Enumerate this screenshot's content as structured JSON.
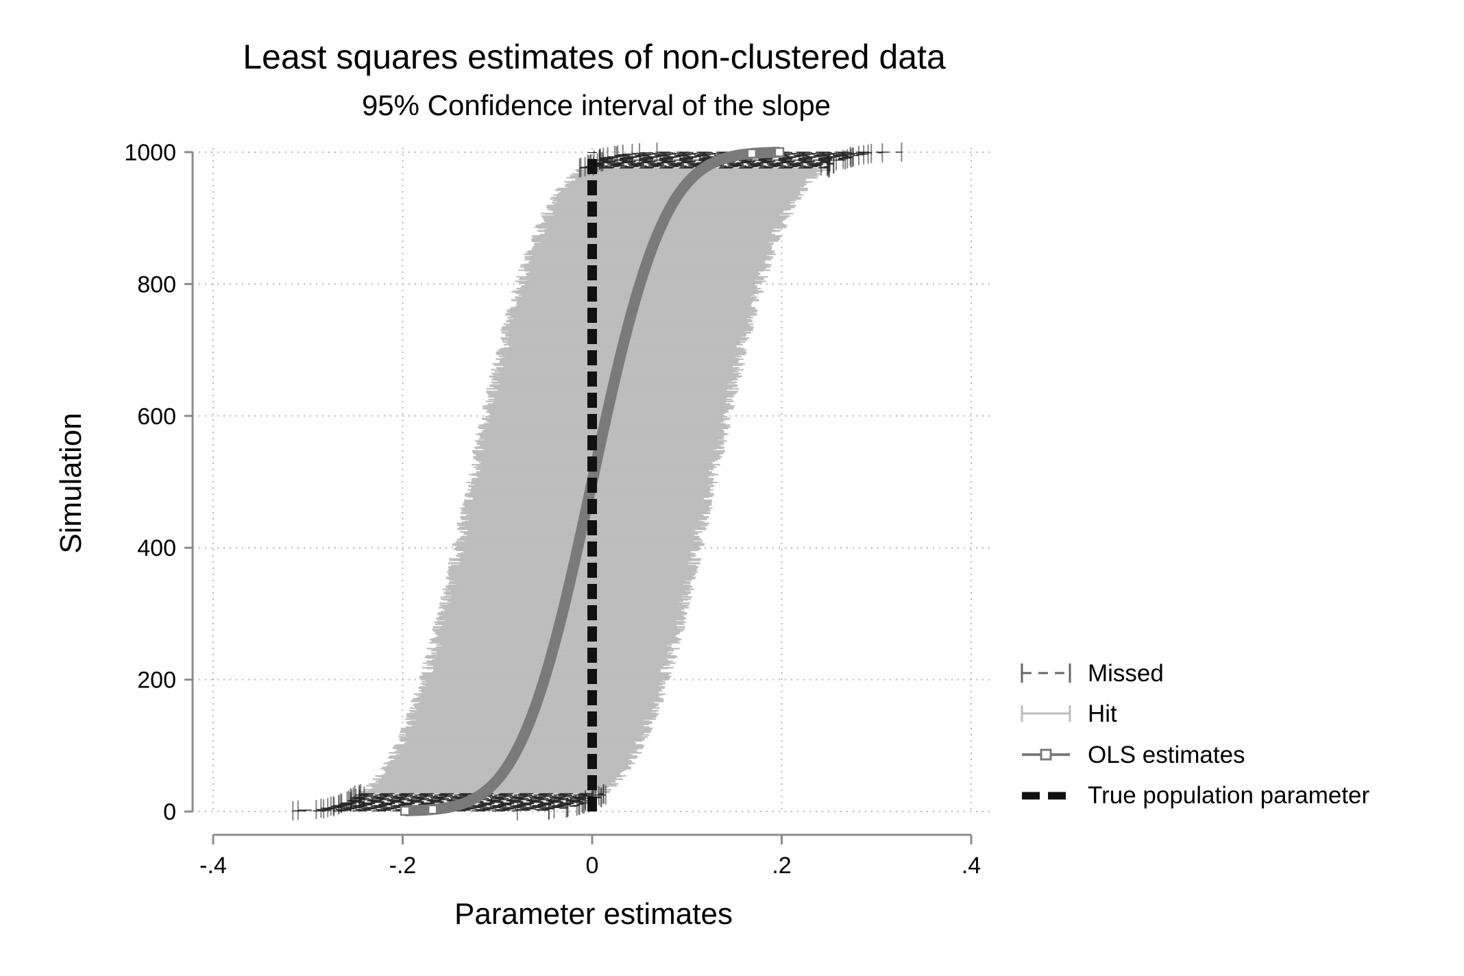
{
  "chart_data": {
    "type": "ci-plot",
    "title": "Least squares estimates of non-clustered data",
    "subtitle": "95% Confidence interval of the slope",
    "xlabel": "Parameter estimates",
    "ylabel": "Simulation",
    "xlim": [
      -0.4,
      0.4
    ],
    "ylim": [
      0,
      1000
    ],
    "xticks": [
      -0.4,
      -0.2,
      0,
      0.2,
      0.4
    ],
    "xtick_labels": [
      "-.4",
      "-.2",
      "0",
      ".2",
      ".4"
    ],
    "yticks": [
      0,
      200,
      400,
      600,
      800,
      1000
    ],
    "ytick_labels": [
      "0",
      "200",
      "400",
      "600",
      "800",
      "1000"
    ],
    "grid": true,
    "legend_position": "right",
    "true_parameter": 0,
    "hits_range": [
      28,
      975
    ],
    "ci_half_width": 0.126,
    "estimate_sd": 0.06,
    "series": [
      {
        "name": "Missed",
        "color": "#222222",
        "style": "capped-dash"
      },
      {
        "name": "Hit",
        "color": "#bdbdbd",
        "style": "solid"
      },
      {
        "name": "OLS estimates",
        "color": "#7a7a7a",
        "style": "line-square-marker"
      },
      {
        "name": "True population parameter",
        "color": "#111111",
        "style": "dashed"
      }
    ],
    "estimate_curve": [
      {
        "x": -0.255,
        "y": 1
      },
      {
        "x": -0.2,
        "y": 2
      },
      {
        "x": -0.15,
        "y": 15
      },
      {
        "x": -0.1,
        "y": 60
      },
      {
        "x": -0.05,
        "y": 190
      },
      {
        "x": 0,
        "y": 480
      },
      {
        "x": 0.05,
        "y": 800
      },
      {
        "x": 0.1,
        "y": 950
      },
      {
        "x": 0.15,
        "y": 995
      },
      {
        "x": 0.215,
        "y": 1000
      }
    ]
  }
}
